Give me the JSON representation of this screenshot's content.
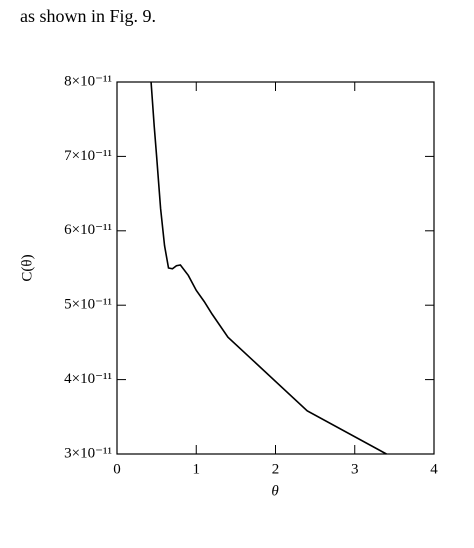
{
  "text": "as shown in Fig. 9.",
  "chart_data": {
    "type": "line",
    "xlabel": "θ",
    "ylabel": "C(θ)",
    "x": [
      0.43,
      0.47,
      0.5,
      0.55,
      0.6,
      0.65,
      0.7,
      0.75,
      0.8,
      0.9,
      1.0,
      1.1,
      1.2,
      1.4,
      2.4,
      3.4
    ],
    "values": [
      8e-11,
      7.4e-11,
      7e-11,
      6.3e-11,
      5.8e-11,
      5.5e-11,
      5.49e-11,
      5.53e-11,
      5.54e-11,
      5.4e-11,
      5.2e-11,
      5.05e-11,
      4.88e-11,
      4.57e-11,
      3.58e-11,
      3e-11
    ],
    "color": "#000000",
    "xlim": [
      0,
      4
    ],
    "xticks": [
      0,
      1,
      2,
      3,
      4
    ],
    "ylim": [
      3e-11,
      8e-11
    ],
    "yticks": [
      {
        "value": 3e-11,
        "label": "3×10⁻¹¹"
      },
      {
        "value": 4e-11,
        "label": "4×10⁻¹¹"
      },
      {
        "value": 5e-11,
        "label": "5×10⁻¹¹"
      },
      {
        "value": 6e-11,
        "label": "6×10⁻¹¹"
      },
      {
        "value": 7e-11,
        "label": "7×10⁻¹¹"
      },
      {
        "value": 8e-11,
        "label": "8×10⁻¹¹"
      }
    ],
    "grid": false
  }
}
